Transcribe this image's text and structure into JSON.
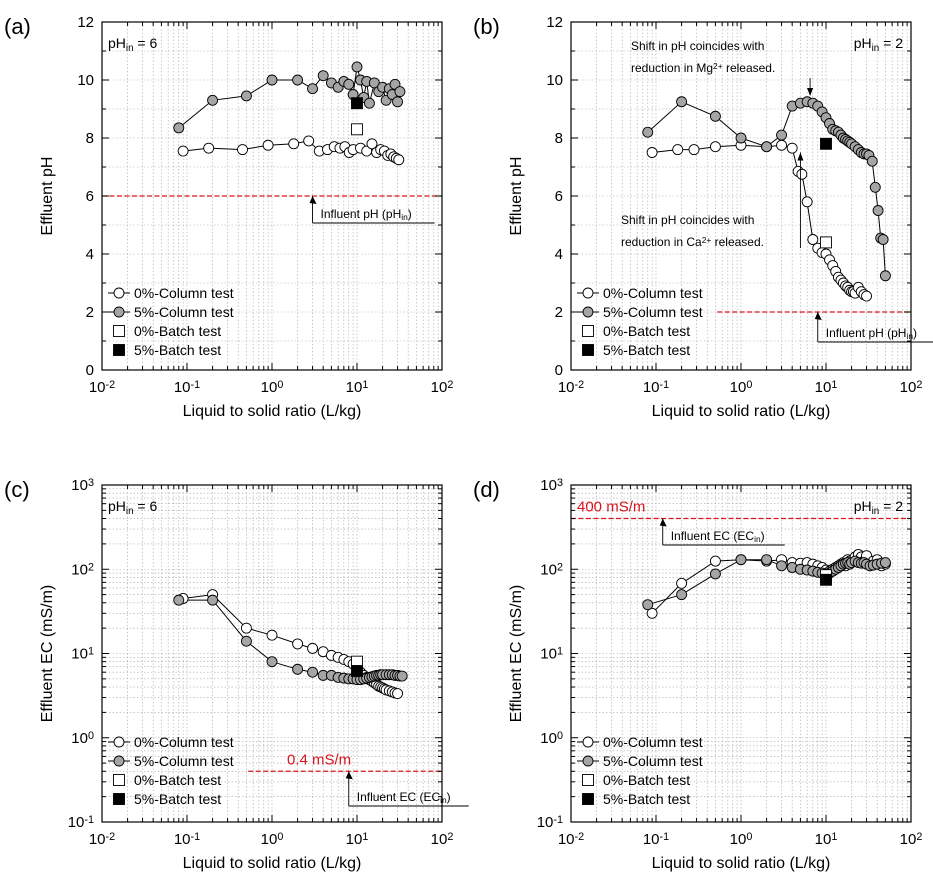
{
  "chart_data": [
    {
      "panel_tag": "(a)",
      "type": "scatter",
      "ph_label_base": "pH",
      "ph_label_sub": "in",
      "ph_label_value": " = 6",
      "xlabel": "Liquid to solid ratio (L/kg)",
      "ylabel": "Effluent pH",
      "xscale": "log",
      "yscale": "linear",
      "xlim": [
        0.01,
        100
      ],
      "ylim": [
        0,
        12
      ],
      "x_ticks": [
        0.01,
        0.1,
        1,
        10,
        100
      ],
      "y_ticks": [
        0,
        2,
        4,
        6,
        8,
        10,
        12
      ],
      "grid": true,
      "series": [
        {
          "name": "0%-Column test",
          "marker": "open-circle",
          "line": true,
          "x": [
            0.09,
            0.18,
            0.45,
            0.9,
            1.8,
            2.7,
            3.6,
            4.5,
            5.4,
            6.3,
            7.2,
            8.1,
            9,
            11,
            13,
            15,
            17,
            19,
            21,
            23,
            25,
            27,
            29,
            31
          ],
          "y": [
            7.55,
            7.65,
            7.6,
            7.75,
            7.8,
            7.9,
            7.55,
            7.6,
            7.7,
            7.65,
            7.7,
            7.5,
            7.6,
            7.65,
            7.55,
            7.8,
            7.5,
            7.6,
            7.55,
            7.4,
            7.45,
            7.35,
            7.3,
            7.25
          ]
        },
        {
          "name": "5%-Column test",
          "marker": "filled-circle",
          "line": true,
          "x": [
            0.08,
            0.2,
            0.5,
            1,
            2,
            3,
            4,
            5,
            6,
            7,
            8,
            9,
            10,
            11,
            12,
            13,
            14,
            16,
            18,
            20,
            22,
            24,
            26,
            28,
            30,
            32
          ],
          "y": [
            8.35,
            9.3,
            9.45,
            10.0,
            10.0,
            9.7,
            10.15,
            9.9,
            9.75,
            9.95,
            9.85,
            9.5,
            10.45,
            10.0,
            9.4,
            9.95,
            9.2,
            9.9,
            9.6,
            9.75,
            9.3,
            9.7,
            9.5,
            9.85,
            9.25,
            9.6
          ]
        },
        {
          "name": "0%-Batch test",
          "marker": "open-square",
          "line": false,
          "x": [
            10
          ],
          "y": [
            8.3
          ]
        },
        {
          "name": "5%-Batch test",
          "marker": "filled-square",
          "line": false,
          "x": [
            10
          ],
          "y": [
            9.2
          ]
        }
      ],
      "reference_line": {
        "value": 6,
        "orientation": "horizontal",
        "color": "#d9141e",
        "label_base": "Influent pH (pH",
        "label_sub": "in",
        "label_end": ")"
      }
    },
    {
      "panel_tag": "(b)",
      "type": "scatter",
      "ph_label_base": "pH",
      "ph_label_sub": "in",
      "ph_label_value": " = 2",
      "xlabel": "Liquid to solid ratio (L/kg)",
      "ylabel": "Effluent pH",
      "xscale": "log",
      "yscale": "linear",
      "xlim": [
        0.01,
        100
      ],
      "ylim": [
        0,
        12
      ],
      "x_ticks": [
        0.01,
        0.1,
        1,
        10,
        100
      ],
      "y_ticks": [
        0,
        2,
        4,
        6,
        8,
        10,
        12
      ],
      "grid": true,
      "series": [
        {
          "name": "0%-Column test",
          "marker": "open-circle",
          "line": true,
          "x": [
            0.09,
            0.18,
            0.28,
            0.5,
            1,
            2,
            3,
            4,
            4.7,
            5.2,
            6,
            7,
            8,
            9,
            10,
            11,
            12,
            13,
            14,
            15,
            16,
            17,
            18,
            19,
            20,
            21,
            22,
            24,
            26,
            28,
            30
          ],
          "y": [
            7.5,
            7.6,
            7.6,
            7.7,
            7.75,
            7.7,
            7.75,
            7.65,
            6.85,
            6.75,
            5.8,
            4.5,
            4.2,
            4.05,
            4.0,
            3.8,
            3.6,
            3.4,
            3.2,
            3.1,
            3.0,
            2.9,
            2.85,
            2.75,
            2.7,
            2.7,
            2.65,
            2.85,
            2.7,
            2.6,
            2.55
          ]
        },
        {
          "name": "5%-Column test",
          "marker": "filled-circle",
          "line": true,
          "x": [
            0.08,
            0.2,
            0.5,
            1,
            2,
            3,
            4,
            5,
            6,
            7,
            8,
            9,
            10,
            11,
            12,
            13,
            14,
            15,
            16,
            17,
            18,
            19,
            20,
            22,
            24,
            26,
            28,
            30,
            32,
            35,
            38,
            41,
            44,
            47,
            50
          ],
          "y": [
            8.2,
            9.25,
            8.75,
            8.0,
            7.7,
            8.1,
            9.1,
            9.2,
            9.25,
            9.2,
            9.1,
            8.9,
            8.7,
            8.5,
            8.3,
            8.25,
            8.2,
            8.1,
            8.0,
            7.95,
            7.9,
            7.85,
            7.8,
            7.7,
            7.6,
            7.5,
            7.45,
            7.45,
            7.4,
            7.2,
            6.3,
            5.5,
            4.55,
            4.5,
            3.25
          ]
        },
        {
          "name": "0%-Batch test",
          "marker": "open-square",
          "line": false,
          "x": [
            10
          ],
          "y": [
            4.4
          ]
        },
        {
          "name": "5%-Batch test",
          "marker": "filled-square",
          "line": false,
          "x": [
            10
          ],
          "y": [
            7.8
          ]
        }
      ],
      "reference_line": {
        "value": 2,
        "orientation": "horizontal",
        "color": "#d9141e",
        "label_base": "Influent pH (pH",
        "label_sub": "in",
        "label_end": ")"
      },
      "annotations": [
        {
          "line1": "Shift in pH coincides with",
          "line2_base": "reduction in Mg",
          "line2_sup": "2+",
          "line2_end": " released."
        },
        {
          "line1": "Shift in pH coincides with",
          "line2_base": "reduction in Ca",
          "line2_sup": "2+",
          "line2_end": " released."
        }
      ]
    },
    {
      "panel_tag": "(c)",
      "type": "scatter",
      "ph_label_base": "pH",
      "ph_label_sub": "in",
      "ph_label_value": " = 6",
      "xlabel": "Liquid to solid ratio (L/kg)",
      "ylabel": "Effluent EC (mS/m)",
      "xscale": "log",
      "yscale": "log",
      "xlim": [
        0.01,
        100
      ],
      "ylim": [
        0.1,
        1000
      ],
      "x_ticks": [
        0.01,
        0.1,
        1,
        10,
        100
      ],
      "y_ticks": [
        0.1,
        1,
        10,
        100,
        1000
      ],
      "grid": true,
      "series": [
        {
          "name": "0%-Column test",
          "marker": "open-circle",
          "line": true,
          "x": [
            0.09,
            0.2,
            0.5,
            1,
            2,
            3,
            4,
            5,
            6,
            7,
            8,
            9,
            10,
            11,
            12,
            13,
            14,
            15,
            16,
            17,
            18,
            19,
            20,
            21,
            22,
            24,
            26,
            28,
            30
          ],
          "y": [
            45,
            50,
            20,
            16.5,
            13,
            11.5,
            10.5,
            9.5,
            9,
            8.5,
            8,
            7.5,
            7,
            6,
            5.5,
            5.2,
            4.9,
            4.7,
            4.5,
            4.3,
            4.1,
            4.0,
            3.9,
            3.8,
            3.7,
            3.6,
            3.5,
            3.4,
            3.35
          ]
        },
        {
          "name": "5%-Column test",
          "marker": "filled-circle",
          "line": true,
          "x": [
            0.08,
            0.2,
            0.5,
            1,
            2,
            3,
            4,
            5,
            6,
            7,
            8,
            9,
            10,
            11,
            12,
            13,
            14,
            15,
            16,
            17,
            18,
            19,
            20,
            22,
            24,
            26,
            28,
            30,
            32,
            34
          ],
          "y": [
            43,
            43,
            14,
            8,
            6.5,
            6,
            5.5,
            5.5,
            5.2,
            5.1,
            5.0,
            5.0,
            4.9,
            4.9,
            5.0,
            5.1,
            5.2,
            5.3,
            5.4,
            5.5,
            5.5,
            5.6,
            5.6,
            5.6,
            5.6,
            5.6,
            5.5,
            5.5,
            5.4,
            5.4
          ]
        },
        {
          "name": "0%-Batch test",
          "marker": "open-square",
          "line": false,
          "x": [
            10
          ],
          "y": [
            8
          ]
        },
        {
          "name": "5%-Batch test",
          "marker": "filled-square",
          "line": false,
          "x": [
            10
          ],
          "y": [
            6.2
          ]
        }
      ],
      "reference_line": {
        "value": 0.4,
        "orientation": "horizontal",
        "color": "#d9141e",
        "text": "0.4 mS/m",
        "label_base": "Influent EC (EC",
        "label_sub": "in",
        "label_end": ")"
      }
    },
    {
      "panel_tag": "(d)",
      "type": "scatter",
      "ph_label_base": "pH",
      "ph_label_sub": "in",
      "ph_label_value": " = 2",
      "xlabel": "Liquid to solid ratio (L/kg)",
      "ylabel": "Effluent EC (mS/m)",
      "xscale": "log",
      "yscale": "log",
      "xlim": [
        0.01,
        100
      ],
      "ylim": [
        0.1,
        1000
      ],
      "x_ticks": [
        0.01,
        0.1,
        1,
        10,
        100
      ],
      "y_ticks": [
        0.1,
        1,
        10,
        100,
        1000
      ],
      "grid": true,
      "series": [
        {
          "name": "0%-Column test",
          "marker": "open-circle",
          "line": true,
          "x": [
            0.09,
            0.2,
            0.5,
            1,
            2,
            3,
            4,
            5,
            6,
            7,
            8,
            9,
            10,
            11,
            12,
            13,
            14,
            15,
            16,
            17,
            18,
            19,
            20,
            22,
            24,
            26,
            28,
            30,
            33,
            36,
            40,
            45,
            50
          ],
          "y": [
            30,
            68,
            125,
            130,
            125,
            130,
            120,
            118,
            120,
            115,
            110,
            105,
            98,
            95,
            100,
            105,
            110,
            115,
            120,
            110,
            130,
            125,
            120,
            140,
            150,
            140,
            125,
            145,
            110,
            125,
            130,
            110,
            115
          ]
        },
        {
          "name": "5%-Column test",
          "marker": "filled-circle",
          "line": true,
          "x": [
            0.08,
            0.2,
            0.5,
            1,
            2,
            3,
            4,
            5,
            6,
            7,
            8,
            9,
            10,
            11,
            12,
            13,
            14,
            15,
            16,
            17,
            18,
            19,
            20,
            22,
            24,
            26,
            28,
            30,
            33,
            36,
            40,
            45,
            50
          ],
          "y": [
            38,
            50,
            88,
            130,
            130,
            110,
            105,
            100,
            98,
            95,
            92,
            90,
            88,
            90,
            95,
            100,
            105,
            110,
            115,
            118,
            120,
            115,
            120,
            125,
            120,
            118,
            120,
            115,
            110,
            112,
            115,
            118,
            120
          ]
        },
        {
          "name": "0%-Batch test",
          "marker": "open-square",
          "line": false,
          "x": [
            10
          ],
          "y": [
            85
          ]
        },
        {
          "name": "5%-Batch test",
          "marker": "filled-square",
          "line": false,
          "x": [
            10
          ],
          "y": [
            75
          ]
        }
      ],
      "reference_line": {
        "value": 400,
        "orientation": "horizontal",
        "color": "#d9141e",
        "text": "400 mS/m",
        "label_base": "Influent EC (EC",
        "label_sub": "in",
        "label_end": ")"
      }
    }
  ]
}
